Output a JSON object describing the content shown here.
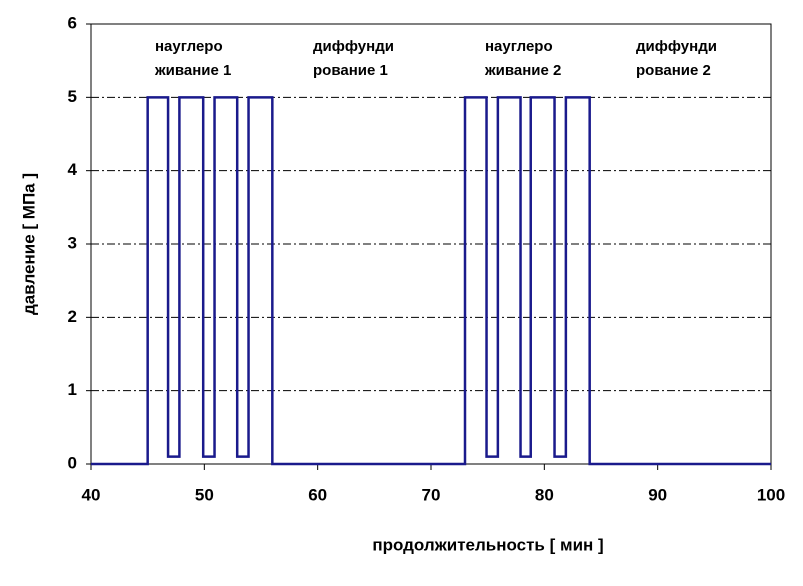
{
  "chart_data": {
    "type": "line",
    "x_label": "продолжительность [ мин ]",
    "y_label": "давление [ МПа ]",
    "x": [
      40,
      45,
      45,
      46.8,
      46.8,
      47.8,
      47.8,
      49.9,
      49.9,
      50.9,
      50.9,
      52.9,
      52.9,
      53.9,
      53.9,
      56,
      56,
      73,
      73,
      74.9,
      74.9,
      75.9,
      75.9,
      77.9,
      77.9,
      78.8,
      78.8,
      80.9,
      80.9,
      81.9,
      81.9,
      84,
      84,
      100
    ],
    "values": [
      0,
      0,
      5,
      5,
      0.1,
      0.1,
      5,
      5,
      0.1,
      0.1,
      5,
      5,
      0.1,
      0.1,
      5,
      5,
      0,
      0,
      5,
      5,
      0.1,
      0.1,
      5,
      5,
      0.1,
      0.1,
      5,
      5,
      0.1,
      0.1,
      5,
      5,
      0,
      0
    ],
    "color": "#1a1a8c",
    "xlim": [
      40,
      100
    ],
    "xticks": [
      40,
      50,
      60,
      70,
      80,
      90,
      100
    ],
    "ylim": [
      0,
      6
    ],
    "yticks": [
      0,
      1,
      2,
      3,
      4,
      5,
      6
    ],
    "grid": true,
    "annotations": [
      [
        "науглеро",
        "живание 1"
      ],
      [
        "диффунди",
        "рование 1"
      ],
      [
        "науглеро",
        "живание 2"
      ],
      [
        "диффунди",
        "рование 2"
      ]
    ]
  }
}
